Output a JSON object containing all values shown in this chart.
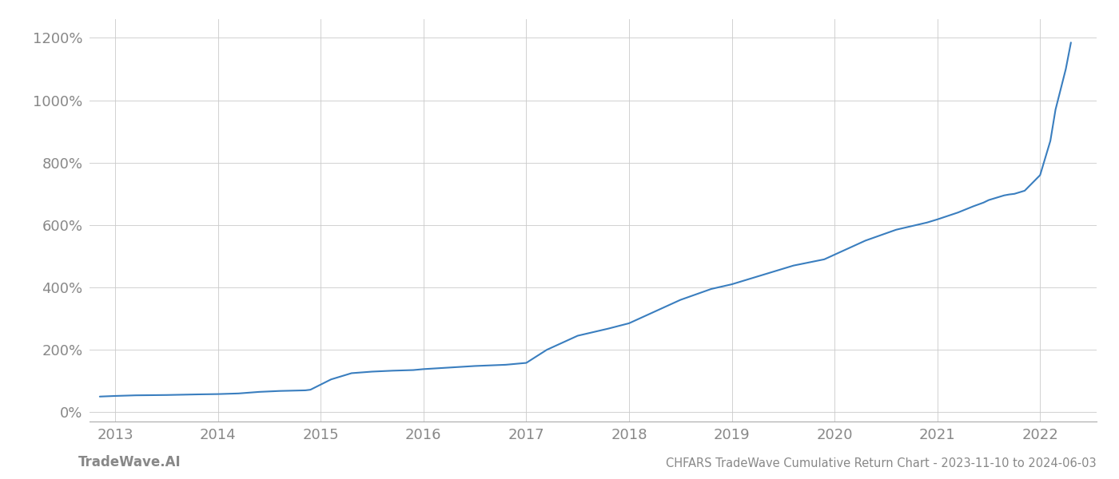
{
  "title": "CHFARS TradeWave Cumulative Return Chart - 2023-11-10 to 2024-06-03",
  "watermark": "TradeWave.AI",
  "line_color": "#3a7ebf",
  "background_color": "#ffffff",
  "grid_color": "#cccccc",
  "x_years": [
    2013,
    2014,
    2015,
    2016,
    2017,
    2018,
    2019,
    2020,
    2021,
    2022
  ],
  "y_ticks": [
    0,
    200,
    400,
    600,
    800,
    1000,
    1200
  ],
  "ylim": [
    -30,
    1260
  ],
  "xlim": [
    2012.75,
    2022.55
  ],
  "data_x": [
    2012.85,
    2013.0,
    2013.2,
    2013.5,
    2013.8,
    2014.0,
    2014.2,
    2014.4,
    2014.6,
    2014.85,
    2014.9,
    2015.1,
    2015.3,
    2015.5,
    2015.7,
    2015.9,
    2016.0,
    2016.2,
    2016.5,
    2016.8,
    2017.0,
    2017.2,
    2017.5,
    2017.8,
    2018.0,
    2018.2,
    2018.5,
    2018.8,
    2019.0,
    2019.3,
    2019.6,
    2019.9,
    2020.0,
    2020.3,
    2020.6,
    2020.9,
    2021.0,
    2021.2,
    2021.35,
    2021.45,
    2021.5,
    2021.55,
    2021.6,
    2021.65,
    2021.7,
    2021.75,
    2021.85,
    2022.0,
    2022.1,
    2022.15,
    2022.25,
    2022.3
  ],
  "data_y": [
    50,
    52,
    54,
    55,
    57,
    58,
    60,
    65,
    68,
    70,
    72,
    105,
    125,
    130,
    133,
    135,
    138,
    142,
    148,
    152,
    158,
    200,
    245,
    268,
    285,
    315,
    360,
    395,
    410,
    440,
    470,
    490,
    505,
    550,
    585,
    608,
    618,
    640,
    660,
    672,
    680,
    685,
    690,
    695,
    698,
    700,
    710,
    760,
    870,
    970,
    1100,
    1185
  ]
}
